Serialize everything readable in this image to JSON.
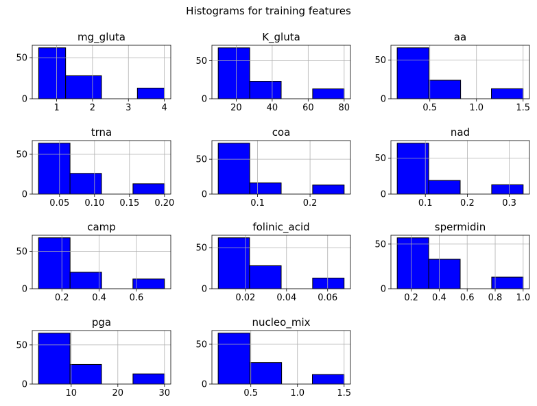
{
  "figure": {
    "title": "Histograms for training features"
  },
  "chart_data": [
    {
      "type": "bar",
      "title": "mg_gluta",
      "bins": [
        [
          0.5,
          1.25
        ],
        [
          1.25,
          2.25
        ],
        [
          2.25,
          3.25
        ],
        [
          3.25,
          4.0
        ]
      ],
      "values": [
        62,
        28,
        0,
        13
      ],
      "xticks": [
        1,
        2,
        3,
        4
      ],
      "xtick_labels": [
        "1",
        "2",
        "3",
        "4"
      ],
      "xlim": [
        0.32,
        4.18
      ],
      "yticks": [
        0,
        50
      ],
      "ytick_labels": [
        "0",
        "50"
      ],
      "ylim": [
        0,
        65.1
      ],
      "grid": true,
      "color": "#0000ff"
    },
    {
      "type": "bar",
      "title": "K_gluta",
      "bins": [
        [
          10,
          27.5
        ],
        [
          27.5,
          45
        ],
        [
          45,
          62.5
        ],
        [
          62.5,
          80
        ]
      ],
      "values": [
        67,
        23,
        0,
        13
      ],
      "xticks": [
        20,
        40,
        60,
        80
      ],
      "xtick_labels": [
        "20",
        "40",
        "60",
        "80"
      ],
      "xlim": [
        6.5,
        83.5
      ],
      "yticks": [
        0,
        50
      ],
      "ytick_labels": [
        "0",
        "50"
      ],
      "ylim": [
        0,
        70.4
      ],
      "grid": true,
      "color": "#0000ff"
    },
    {
      "type": "bar",
      "title": "aa",
      "bins": [
        [
          0.15,
          0.49
        ],
        [
          0.49,
          0.83
        ],
        [
          0.83,
          1.16
        ],
        [
          1.16,
          1.5
        ]
      ],
      "values": [
        66,
        24,
        0,
        13
      ],
      "xticks": [
        0.5,
        1.0,
        1.5
      ],
      "xtick_labels": [
        "0.5",
        "1.0",
        "1.5"
      ],
      "xlim": [
        0.083,
        1.568
      ],
      "yticks": [
        0,
        50
      ],
      "ytick_labels": [
        "0",
        "50"
      ],
      "ylim": [
        0,
        69.3
      ],
      "grid": true,
      "color": "#0000ff"
    },
    {
      "type": "bar",
      "title": "trna",
      "bins": [
        [
          0.02,
          0.065
        ],
        [
          0.065,
          0.11
        ],
        [
          0.11,
          0.155
        ],
        [
          0.155,
          0.2
        ]
      ],
      "values": [
        64,
        26,
        0,
        13
      ],
      "xticks": [
        0.05,
        0.1,
        0.15,
        0.2
      ],
      "xtick_labels": [
        "0.05",
        "0.10",
        "0.15",
        "0.20"
      ],
      "xlim": [
        0.011,
        0.209
      ],
      "yticks": [
        0,
        50
      ],
      "ytick_labels": [
        "0",
        "50"
      ],
      "ylim": [
        0,
        67.2
      ],
      "grid": true,
      "color": "#0000ff"
    },
    {
      "type": "bar",
      "title": "coa",
      "bins": [
        [
          0.025,
          0.085
        ],
        [
          0.085,
          0.145
        ],
        [
          0.145,
          0.205
        ],
        [
          0.205,
          0.265
        ]
      ],
      "values": [
        73,
        16,
        0,
        13
      ],
      "xticks": [
        0.1,
        0.2
      ],
      "xtick_labels": [
        "0.1",
        "0.2"
      ],
      "xlim": [
        0.013,
        0.277
      ],
      "yticks": [
        0,
        50
      ],
      "ytick_labels": [
        "0",
        "50"
      ],
      "ylim": [
        0,
        76.7
      ],
      "grid": true,
      "color": "#0000ff"
    },
    {
      "type": "bar",
      "title": "nad",
      "bins": [
        [
          0.033,
          0.108
        ],
        [
          0.108,
          0.183
        ],
        [
          0.183,
          0.258
        ],
        [
          0.258,
          0.333
        ]
      ],
      "values": [
        71,
        19,
        0,
        13
      ],
      "xticks": [
        0.1,
        0.2,
        0.3
      ],
      "xtick_labels": [
        "0.1",
        "0.2",
        "0.3"
      ],
      "xlim": [
        0.018,
        0.348
      ],
      "yticks": [
        0,
        50
      ],
      "ytick_labels": [
        "0",
        "50"
      ],
      "ylim": [
        0,
        74.6
      ],
      "grid": true,
      "color": "#0000ff"
    },
    {
      "type": "bar",
      "title": "camp",
      "bins": [
        [
          0.075,
          0.244
        ],
        [
          0.244,
          0.413
        ],
        [
          0.413,
          0.581
        ],
        [
          0.581,
          0.75
        ]
      ],
      "values": [
        68,
        22,
        0,
        13
      ],
      "xticks": [
        0.2,
        0.4,
        0.6
      ],
      "xtick_labels": [
        "0.2",
        "0.4",
        "0.6"
      ],
      "xlim": [
        0.041,
        0.784
      ],
      "yticks": [
        0,
        50
      ],
      "ytick_labels": [
        "0",
        "50"
      ],
      "ylim": [
        0,
        71.4
      ],
      "grid": true,
      "color": "#0000ff"
    },
    {
      "type": "bar",
      "title": "folinic_acid",
      "bins": [
        [
          0.0068,
          0.022
        ],
        [
          0.022,
          0.0374
        ],
        [
          0.0374,
          0.0527
        ],
        [
          0.0527,
          0.068
        ]
      ],
      "values": [
        62,
        28,
        0,
        13
      ],
      "xticks": [
        0.02,
        0.04,
        0.06
      ],
      "xtick_labels": [
        "0.02",
        "0.04",
        "0.06"
      ],
      "xlim": [
        0.0037,
        0.0711
      ],
      "yticks": [
        0,
        50
      ],
      "ytick_labels": [
        "0",
        "50"
      ],
      "ylim": [
        0,
        65.1
      ],
      "grid": true,
      "color": "#0000ff"
    },
    {
      "type": "bar",
      "title": "spermidin",
      "bins": [
        [
          0.1,
          0.325
        ],
        [
          0.325,
          0.55
        ],
        [
          0.55,
          0.775
        ],
        [
          0.775,
          1.0
        ]
      ],
      "values": [
        57,
        33,
        0,
        13
      ],
      "xticks": [
        0.2,
        0.4,
        0.6,
        0.8,
        1.0
      ],
      "xtick_labels": [
        "0.2",
        "0.4",
        "0.6",
        "0.8",
        "1.0"
      ],
      "xlim": [
        0.055,
        1.045
      ],
      "yticks": [
        0,
        50
      ],
      "ytick_labels": [
        "0",
        "50"
      ],
      "ylim": [
        0,
        59.9
      ],
      "grid": true,
      "color": "#0000ff"
    },
    {
      "type": "bar",
      "title": "pga",
      "bins": [
        [
          3,
          9.75
        ],
        [
          9.75,
          16.5
        ],
        [
          16.5,
          23.25
        ],
        [
          23.25,
          30
        ]
      ],
      "values": [
        65,
        25,
        0,
        13
      ],
      "xticks": [
        10,
        20,
        30
      ],
      "xtick_labels": [
        "10",
        "20",
        "30"
      ],
      "xlim": [
        1.65,
        31.35
      ],
      "yticks": [
        0,
        50
      ],
      "ytick_labels": [
        "0",
        "50"
      ],
      "ylim": [
        0,
        68.3
      ],
      "grid": true,
      "color": "#0000ff"
    },
    {
      "type": "bar",
      "title": "nucleo_mix",
      "bins": [
        [
          0.15,
          0.49
        ],
        [
          0.49,
          0.83
        ],
        [
          0.83,
          1.16
        ],
        [
          1.16,
          1.5
        ]
      ],
      "values": [
        64,
        27,
        0,
        12
      ],
      "xticks": [
        0.5,
        1.0,
        1.5
      ],
      "xtick_labels": [
        "0.5",
        "1.0",
        "1.5"
      ],
      "xlim": [
        0.083,
        1.568
      ],
      "yticks": [
        0,
        50
      ],
      "ytick_labels": [
        "0",
        "50"
      ],
      "ylim": [
        0,
        67.2
      ],
      "grid": true,
      "color": "#0000ff"
    }
  ]
}
